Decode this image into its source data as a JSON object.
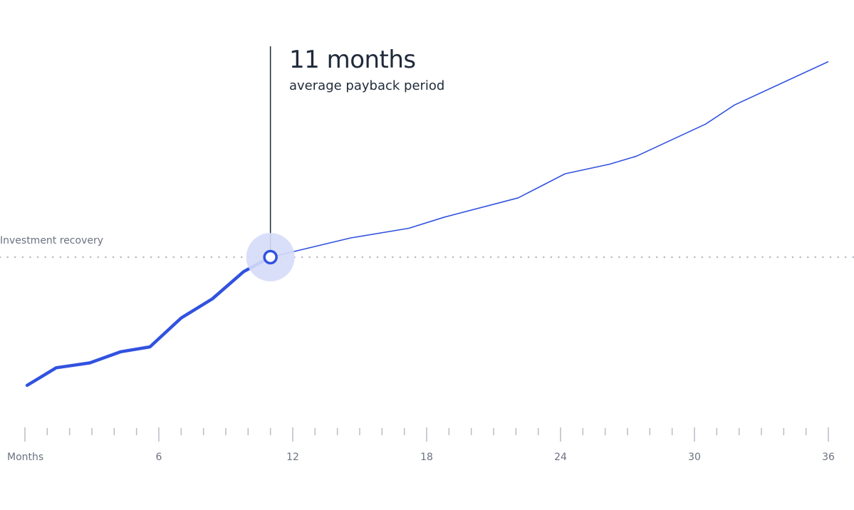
{
  "callout": {
    "value": "11 months",
    "label": "average payback period"
  },
  "reference_label": "Investment recovery",
  "chart_data": {
    "type": "line",
    "xlabel": "Months",
    "ylabel": "",
    "title": "",
    "xlim": [
      0,
      36
    ],
    "ylim": [
      -11,
      14
    ],
    "x_tick_labels": [
      "6",
      "12",
      "18",
      "24",
      "30",
      "36"
    ],
    "x_ticks": [
      6,
      12,
      18,
      24,
      30,
      36
    ],
    "reference_line": {
      "y": 0,
      "label": "Investment recovery",
      "style": "dotted"
    },
    "highlight_point": {
      "x": 11,
      "y": 0
    },
    "series": [
      {
        "x": [
          0.1,
          1.4,
          2.9,
          4.3,
          5.6,
          7.0,
          8.4,
          9.8,
          11.0,
          14.6,
          17.2,
          18.8,
          22.1,
          24.2,
          26.2,
          27.4,
          30.5,
          31.8,
          36.0
        ],
        "values": [
          -8.0,
          -6.9,
          -6.6,
          -5.9,
          -5.6,
          -3.8,
          -2.6,
          -0.9,
          0.0,
          1.2,
          1.8,
          2.5,
          3.7,
          5.2,
          5.8,
          6.3,
          8.3,
          9.5,
          12.2
        ]
      }
    ],
    "colors": {
      "line": "#3152e0",
      "highlight_fill": "#d6dcf8",
      "tick": "#b8bcc4",
      "reference": "#b8bcc4"
    }
  }
}
